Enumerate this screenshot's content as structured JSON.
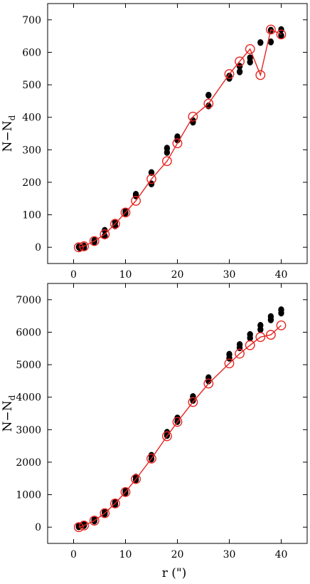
{
  "chart_data": [
    {
      "type": "scatter",
      "xlabel": "",
      "ylabel": "N−N",
      "ylabel_sub": "d",
      "xlim": [
        -5,
        45
      ],
      "ylim": [
        -50,
        750
      ],
      "xticks": [
        0,
        10,
        20,
        30,
        40
      ],
      "yticks": [
        0,
        100,
        200,
        300,
        400,
        500,
        600,
        700
      ],
      "series": [
        {
          "marker": "filled-circle",
          "color": "#000000",
          "points": [
            [
              1,
              1
            ],
            [
              1.2,
              -2
            ],
            [
              2,
              4
            ],
            [
              2,
              -1
            ],
            [
              4,
              17
            ],
            [
              4,
              21
            ],
            [
              6,
              35
            ],
            [
              6,
              52
            ],
            [
              8,
              66
            ],
            [
              8,
              77
            ],
            [
              10,
              105
            ],
            [
              10,
              110
            ],
            [
              12,
              158
            ],
            [
              12,
              163
            ],
            [
              15,
              195
            ],
            [
              15,
              230
            ],
            [
              18,
              292
            ],
            [
              18,
              305
            ],
            [
              20,
              330
            ],
            [
              20,
              340
            ],
            [
              23,
              385
            ],
            [
              23,
              390
            ],
            [
              26,
              435
            ],
            [
              26,
              468
            ],
            [
              30,
              520
            ],
            [
              30,
              527
            ],
            [
              32,
              540
            ],
            [
              32,
              557
            ],
            [
              34,
              570
            ],
            [
              34,
              583
            ],
            [
              36,
              630
            ],
            [
              38,
              632
            ],
            [
              38,
              668
            ],
            [
              40,
              652
            ],
            [
              40,
              670
            ]
          ]
        },
        {
          "marker": "open-circle-line",
          "color": "#e8231f",
          "points": [
            [
              1,
              0
            ],
            [
              2,
              3
            ],
            [
              4,
              19
            ],
            [
              6,
              40
            ],
            [
              8,
              72
            ],
            [
              10,
              107
            ],
            [
              12,
              143
            ],
            [
              15,
              210
            ],
            [
              18,
              265
            ],
            [
              20,
              320
            ],
            [
              23,
              402
            ],
            [
              26,
              442
            ],
            [
              30,
              533
            ],
            [
              32,
              572
            ],
            [
              34,
              610
            ],
            [
              36,
              530
            ],
            [
              38,
              670
            ],
            [
              40,
              655
            ]
          ]
        }
      ]
    },
    {
      "type": "scatter",
      "xlabel": "r (\")",
      "ylabel": "N−N",
      "ylabel_sub": "d",
      "xlim": [
        -5,
        45
      ],
      "ylim": [
        -500,
        7500
      ],
      "xticks": [
        0,
        10,
        20,
        30,
        40
      ],
      "yticks": [
        0,
        1000,
        2000,
        3000,
        4000,
        5000,
        6000,
        7000
      ],
      "series": [
        {
          "marker": "filled-circle",
          "color": "#000000",
          "points": [
            [
              1,
              10
            ],
            [
              1,
              30
            ],
            [
              2,
              50
            ],
            [
              2,
              80
            ],
            [
              4,
              190
            ],
            [
              4,
              230
            ],
            [
              6,
              410
            ],
            [
              6,
              460
            ],
            [
              8,
              700
            ],
            [
              8,
              760
            ],
            [
              10,
              1060
            ],
            [
              10,
              1110
            ],
            [
              12,
              1460
            ],
            [
              12,
              1540
            ],
            [
              15,
              2100
            ],
            [
              15,
              2210
            ],
            [
              18,
              2820
            ],
            [
              18,
              2920
            ],
            [
              20,
              3250
            ],
            [
              20,
              3360
            ],
            [
              23,
              3900
            ],
            [
              23,
              4020
            ],
            [
              26,
              4500
            ],
            [
              26,
              4600
            ],
            [
              30,
              5200
            ],
            [
              30,
              5320
            ],
            [
              32,
              5520
            ],
            [
              32,
              5620
            ],
            [
              34,
              5820
            ],
            [
              34,
              5930
            ],
            [
              36,
              6080
            ],
            [
              36,
              6210
            ],
            [
              38,
              6380
            ],
            [
              38,
              6480
            ],
            [
              40,
              6590
            ],
            [
              40,
              6690
            ]
          ]
        },
        {
          "marker": "open-circle-line",
          "color": "#e8231f",
          "points": [
            [
              1,
              0
            ],
            [
              2,
              50
            ],
            [
              4,
              200
            ],
            [
              6,
              430
            ],
            [
              8,
              730
            ],
            [
              10,
              1080
            ],
            [
              12,
              1480
            ],
            [
              15,
              2110
            ],
            [
              18,
              2800
            ],
            [
              20,
              3240
            ],
            [
              23,
              3850
            ],
            [
              26,
              4420
            ],
            [
              30,
              5040
            ],
            [
              32,
              5340
            ],
            [
              34,
              5600
            ],
            [
              36,
              5850
            ],
            [
              38,
              5920
            ],
            [
              40,
              6210
            ]
          ]
        }
      ]
    }
  ]
}
